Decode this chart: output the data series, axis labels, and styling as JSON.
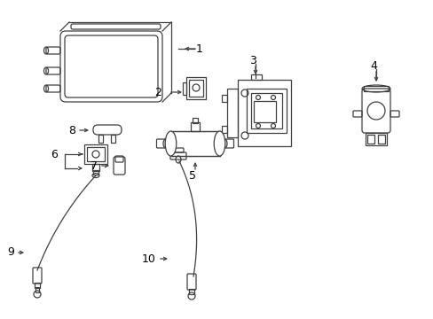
{
  "background_color": "#ffffff",
  "line_color": "#404040",
  "fig_width": 4.89,
  "fig_height": 3.6,
  "dpi": 100
}
